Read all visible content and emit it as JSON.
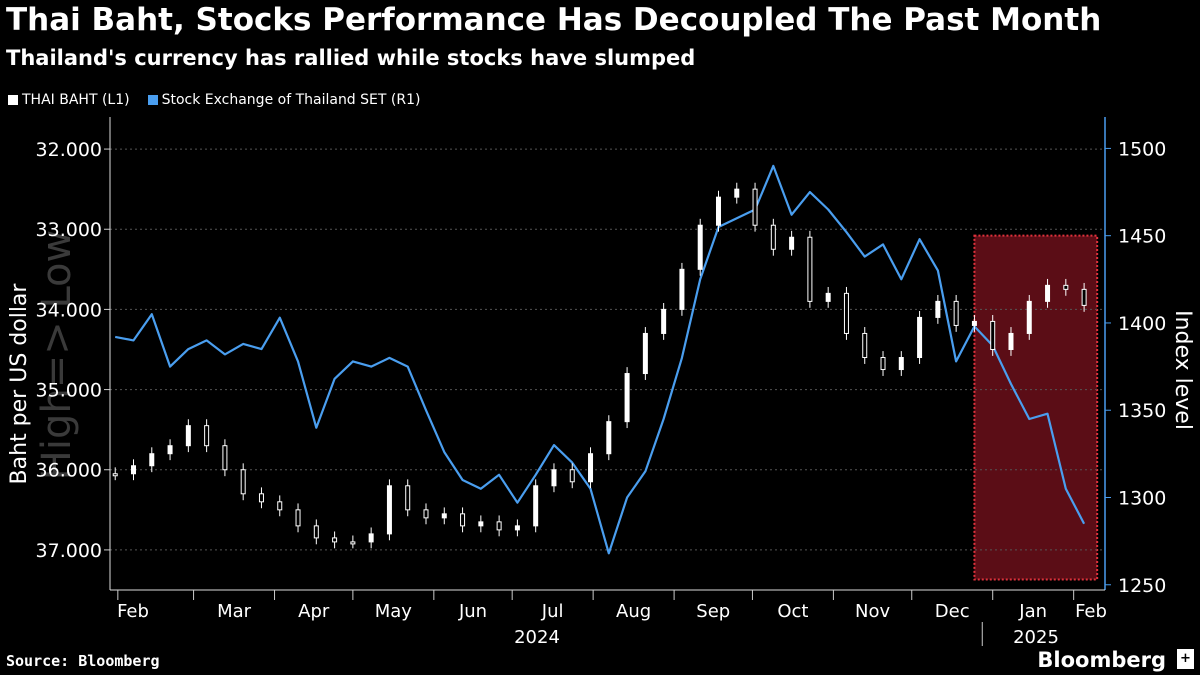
{
  "header": {
    "title": "Thai Baht, Stocks Performance Has Decoupled The Past Month",
    "subtitle": "Thailand's currency has rallied while stocks have slumped"
  },
  "footer": {
    "source": "Source: Bloomberg",
    "brand": "Bloomberg"
  },
  "colors": {
    "background": "#000000",
    "baht": "#ffffff",
    "set": "#4a9eef",
    "highlight_fill": "#6b0f1a",
    "highlight_border": "#e0323c",
    "grid": "#555555"
  },
  "chart_data": {
    "type": "line",
    "title": "Thai Baht, Stocks Performance Has Decoupled The Past Month",
    "subtitle": "Thailand's currency has rallied while stocks have slumped",
    "xlabel": "",
    "x_ticks": [
      "Feb",
      "Mar",
      "Apr",
      "May",
      "Jun",
      "Jul",
      "Aug",
      "Sep",
      "Oct",
      "Nov",
      "Dec",
      "Jan",
      "Feb"
    ],
    "x_year_labels": [
      "2024",
      "2025"
    ],
    "left_axis": {
      "label": "Baht per US dollar",
      "inverted": true,
      "ylim": [
        37.5,
        31.6
      ],
      "ticks": [
        "32.000",
        "33.000",
        "34.000",
        "35.000",
        "36.000",
        "37.000"
      ],
      "watermark": "High=> Low"
    },
    "right_axis": {
      "label": "Index level",
      "ylim": [
        1247,
        1518
      ],
      "ticks": [
        "1250",
        "1300",
        "1350",
        "1400",
        "1450",
        "1500"
      ]
    },
    "legend": [
      "THAI BAHT (L1)",
      "Stock Exchange of Thailand SET (R1)"
    ],
    "legend_placement": "top-left",
    "grid": "horizontal dotted",
    "highlight_region": {
      "x_start": "2024-12-25",
      "x_end": "2025-02-10",
      "y_low": 1253,
      "y_high": 1450
    },
    "series": [
      {
        "name": "THAI BAHT (L1)",
        "axis": "left",
        "style": "candlestick",
        "x": [
          "2024-01-31",
          "2024-02-07",
          "2024-02-14",
          "2024-02-21",
          "2024-02-28",
          "2024-03-06",
          "2024-03-13",
          "2024-03-20",
          "2024-03-27",
          "2024-04-03",
          "2024-04-10",
          "2024-04-17",
          "2024-04-24",
          "2024-05-01",
          "2024-05-08",
          "2024-05-15",
          "2024-05-22",
          "2024-05-29",
          "2024-06-05",
          "2024-06-12",
          "2024-06-19",
          "2024-06-26",
          "2024-07-03",
          "2024-07-10",
          "2024-07-17",
          "2024-07-24",
          "2024-07-31",
          "2024-08-07",
          "2024-08-14",
          "2024-08-21",
          "2024-08-28",
          "2024-09-04",
          "2024-09-11",
          "2024-09-18",
          "2024-09-25",
          "2024-10-02",
          "2024-10-09",
          "2024-10-16",
          "2024-10-23",
          "2024-10-30",
          "2024-11-06",
          "2024-11-13",
          "2024-11-20",
          "2024-11-27",
          "2024-12-04",
          "2024-12-11",
          "2024-12-18",
          "2024-12-25",
          "2025-01-01",
          "2025-01-08",
          "2025-01-15",
          "2025-01-22",
          "2025-01-29",
          "2025-02-05"
        ],
        "values": [
          36.05,
          35.95,
          35.8,
          35.7,
          35.45,
          35.7,
          36.0,
          36.3,
          36.4,
          36.5,
          36.7,
          36.85,
          36.9,
          36.9,
          36.8,
          36.2,
          36.5,
          36.6,
          36.55,
          36.7,
          36.65,
          36.75,
          36.7,
          36.2,
          36.0,
          36.15,
          35.8,
          35.4,
          34.8,
          34.3,
          34.0,
          33.5,
          32.95,
          32.6,
          32.5,
          32.95,
          33.25,
          33.1,
          33.9,
          33.8,
          34.3,
          34.6,
          34.75,
          34.6,
          34.1,
          33.9,
          34.2,
          34.15,
          34.5,
          34.3,
          33.9,
          33.7,
          33.75,
          33.95
        ]
      },
      {
        "name": "Stock Exchange of Thailand SET (R1)",
        "axis": "right",
        "style": "line",
        "x": [
          "2024-01-31",
          "2024-02-07",
          "2024-02-14",
          "2024-02-21",
          "2024-02-28",
          "2024-03-06",
          "2024-03-13",
          "2024-03-20",
          "2024-03-27",
          "2024-04-03",
          "2024-04-10",
          "2024-04-17",
          "2024-04-24",
          "2024-05-01",
          "2024-05-08",
          "2024-05-15",
          "2024-05-22",
          "2024-05-29",
          "2024-06-05",
          "2024-06-12",
          "2024-06-19",
          "2024-06-26",
          "2024-07-03",
          "2024-07-10",
          "2024-07-17",
          "2024-07-24",
          "2024-07-31",
          "2024-08-07",
          "2024-08-14",
          "2024-08-21",
          "2024-08-28",
          "2024-09-04",
          "2024-09-11",
          "2024-09-18",
          "2024-09-25",
          "2024-10-02",
          "2024-10-09",
          "2024-10-16",
          "2024-10-23",
          "2024-10-30",
          "2024-11-06",
          "2024-11-13",
          "2024-11-20",
          "2024-11-27",
          "2024-12-04",
          "2024-12-11",
          "2024-12-18",
          "2024-12-25",
          "2025-01-01",
          "2025-01-08",
          "2025-01-15",
          "2025-01-22",
          "2025-01-29",
          "2025-02-05"
        ],
        "values": [
          1392,
          1390,
          1405,
          1375,
          1385,
          1390,
          1382,
          1388,
          1385,
          1403,
          1378,
          1340,
          1368,
          1378,
          1375,
          1380,
          1375,
          1350,
          1326,
          1310,
          1305,
          1313,
          1297,
          1313,
          1330,
          1320,
          1305,
          1268,
          1300,
          1315,
          1345,
          1380,
          1425,
          1455,
          1460,
          1465,
          1490,
          1462,
          1475,
          1465,
          1452,
          1438,
          1445,
          1425,
          1448,
          1430,
          1378,
          1398,
          1387,
          1365,
          1345,
          1348,
          1305,
          1285
        ]
      }
    ]
  }
}
